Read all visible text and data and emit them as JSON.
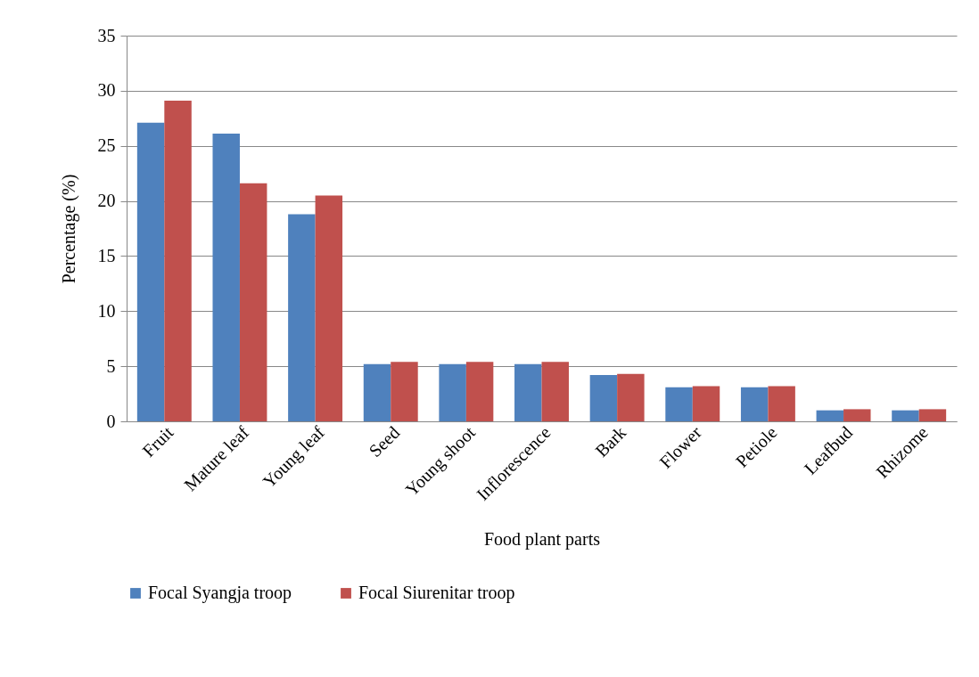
{
  "chart_data": {
    "type": "bar",
    "xlabel": "Food plant parts",
    "ylabel": "Percentage (%)",
    "categories": [
      "Fruit",
      "Mature leaf",
      "Young leaf",
      "Seed",
      "Young shoot",
      "Inflorescence",
      "Bark",
      "Flower",
      "Petiole",
      "Leafbud",
      "Rhizome"
    ],
    "series": [
      {
        "name": "Focal Syangja troop",
        "color": "#4f81bd",
        "values": [
          27.1,
          26.1,
          18.8,
          5.2,
          5.2,
          5.2,
          4.2,
          3.1,
          3.1,
          1.0,
          1.0
        ]
      },
      {
        "name": "Focal Siurenitar troop",
        "color": "#c0504d",
        "values": [
          29.1,
          21.6,
          20.5,
          5.4,
          5.4,
          5.4,
          4.3,
          3.2,
          3.2,
          1.1,
          1.1
        ]
      }
    ],
    "ylim": [
      0,
      35
    ],
    "yticks": [
      0,
      5,
      10,
      15,
      20,
      25,
      30,
      35
    ],
    "grid": "y",
    "legend": "bottom"
  }
}
